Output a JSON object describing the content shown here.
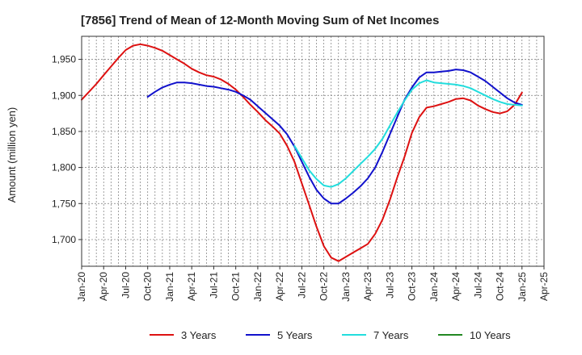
{
  "chart_data": {
    "type": "line",
    "title": "[7856]  Trend of Mean of 12-Month Moving Sum of Net Incomes",
    "xlabel": "",
    "ylabel": "Amount (million yen)",
    "x_ticks": [
      "Jan-20",
      "Apr-20",
      "Jul-20",
      "Oct-20",
      "Jan-21",
      "Apr-21",
      "Jul-21",
      "Oct-21",
      "Jan-22",
      "Apr-22",
      "Jul-22",
      "Oct-22",
      "Jan-23",
      "Apr-23",
      "Jul-23",
      "Oct-23",
      "Jan-24",
      "Apr-24",
      "Jul-24",
      "Oct-24",
      "Jan-25",
      "Apr-25"
    ],
    "xlim": [
      "Jan-20",
      "Apr-25"
    ],
    "y_ticks": [
      1700,
      1750,
      1800,
      1850,
      1900,
      1950
    ],
    "y_tick_labels": [
      "1,700",
      "1,750",
      "1,800",
      "1,850",
      "1,900",
      "1,950"
    ],
    "ylim": [
      1663,
      1982
    ],
    "grid": true,
    "legend_position": "bottom",
    "series": [
      {
        "name": "3 Years",
        "color": "#dd1111",
        "x": [
          "2020-01",
          "2020-02",
          "2020-03",
          "2020-04",
          "2020-05",
          "2020-06",
          "2020-07",
          "2020-08",
          "2020-09",
          "2020-10",
          "2020-11",
          "2020-12",
          "2021-01",
          "2021-02",
          "2021-03",
          "2021-04",
          "2021-05",
          "2021-06",
          "2021-07",
          "2021-08",
          "2021-09",
          "2021-10",
          "2021-11",
          "2021-12",
          "2022-01",
          "2022-02",
          "2022-03",
          "2022-04",
          "2022-05",
          "2022-06",
          "2022-07",
          "2022-08",
          "2022-09",
          "2022-10",
          "2022-11",
          "2022-12",
          "2023-01",
          "2023-02",
          "2023-03",
          "2023-04",
          "2023-05",
          "2023-06",
          "2023-07",
          "2023-08",
          "2023-09",
          "2023-10",
          "2023-11",
          "2023-12",
          "2024-01",
          "2024-02",
          "2024-03",
          "2024-04",
          "2024-05",
          "2024-06",
          "2024-07",
          "2024-08",
          "2024-09",
          "2024-10",
          "2024-11",
          "2024-12",
          "2025-01"
        ],
        "values": [
          1894,
          1905,
          1916,
          1928,
          1940,
          1952,
          1963,
          1969,
          1971,
          1969,
          1966,
          1962,
          1956,
          1950,
          1944,
          1937,
          1932,
          1928,
          1926,
          1922,
          1916,
          1908,
          1898,
          1887,
          1877,
          1866,
          1857,
          1847,
          1830,
          1808,
          1778,
          1748,
          1718,
          1691,
          1675,
          1670,
          1676,
          1682,
          1688,
          1694,
          1708,
          1728,
          1755,
          1786,
          1815,
          1848,
          1870,
          1883,
          1885,
          1888,
          1891,
          1895,
          1896,
          1893,
          1886,
          1881,
          1877,
          1875,
          1878,
          1887,
          1904
        ]
      },
      {
        "name": "5 Years",
        "color": "#1111cc",
        "x": [
          "2020-10",
          "2020-11",
          "2020-12",
          "2021-01",
          "2021-02",
          "2021-03",
          "2021-04",
          "2021-05",
          "2021-06",
          "2021-07",
          "2021-08",
          "2021-09",
          "2021-10",
          "2021-11",
          "2021-12",
          "2022-01",
          "2022-02",
          "2022-03",
          "2022-04",
          "2022-05",
          "2022-06",
          "2022-07",
          "2022-08",
          "2022-09",
          "2022-10",
          "2022-11",
          "2022-12",
          "2023-01",
          "2023-02",
          "2023-03",
          "2023-04",
          "2023-05",
          "2023-06",
          "2023-07",
          "2023-08",
          "2023-09",
          "2023-10",
          "2023-11",
          "2023-12",
          "2024-01",
          "2024-02",
          "2024-03",
          "2024-04",
          "2024-05",
          "2024-06",
          "2024-07",
          "2024-08",
          "2024-09",
          "2024-10",
          "2024-11",
          "2024-12",
          "2025-01"
        ],
        "values": [
          1898,
          1905,
          1911,
          1915,
          1918,
          1918,
          1917,
          1915,
          1913,
          1912,
          1910,
          1908,
          1905,
          1900,
          1894,
          1885,
          1876,
          1867,
          1858,
          1846,
          1829,
          1808,
          1787,
          1769,
          1757,
          1750,
          1750,
          1757,
          1765,
          1774,
          1785,
          1800,
          1822,
          1846,
          1870,
          1894,
          1911,
          1925,
          1932,
          1932,
          1933,
          1934,
          1936,
          1935,
          1932,
          1926,
          1920,
          1912,
          1904,
          1896,
          1890,
          1887
        ]
      },
      {
        "name": "7 Years",
        "color": "#22dddd",
        "x": [
          "2022-06",
          "2022-07",
          "2022-08",
          "2022-09",
          "2022-10",
          "2022-11",
          "2022-12",
          "2023-01",
          "2023-02",
          "2023-03",
          "2023-04",
          "2023-05",
          "2023-06",
          "2023-07",
          "2023-08",
          "2023-09",
          "2023-10",
          "2023-11",
          "2023-12",
          "2024-01",
          "2024-02",
          "2024-03",
          "2024-04",
          "2024-05",
          "2024-06",
          "2024-07",
          "2024-08",
          "2024-09",
          "2024-10",
          "2024-11",
          "2024-12",
          "2025-01"
        ],
        "values": [
          1830,
          1813,
          1796,
          1784,
          1775,
          1773,
          1777,
          1785,
          1795,
          1805,
          1815,
          1826,
          1840,
          1858,
          1876,
          1893,
          1908,
          1917,
          1921,
          1918,
          1917,
          1916,
          1915,
          1913,
          1910,
          1905,
          1900,
          1895,
          1891,
          1888,
          1887,
          1886
        ]
      },
      {
        "name": "10 Years",
        "color": "#228822",
        "x": [],
        "values": []
      }
    ]
  }
}
